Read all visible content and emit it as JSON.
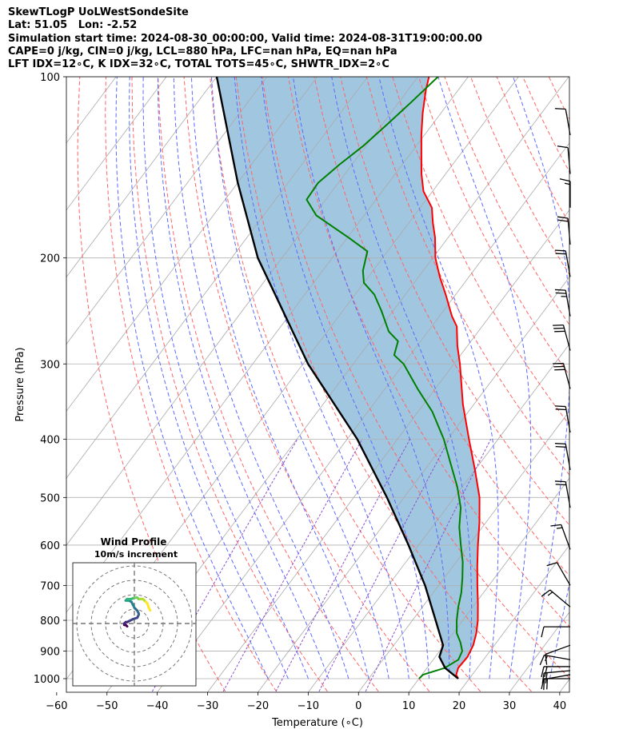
{
  "header": {
    "line1": "SkewTLogP UoLWestSondeSite",
    "line2": "Lat: 51.05   Lon: -2.52",
    "line3": "Simulation start time: 2024-08-30_00:00:00, Valid time: 2024-08-31T19:00:00.00",
    "line4": "CAPE=0 j/kg, CIN=0 j/kg, LCL=880 hPa, LFC=nan hPa, EQ=nan hPa",
    "line5": "LFT IDX=12∘C, K IDX=32∘C, TOTAL TOTS=45∘C, SHWTR_IDX=2∘C"
  },
  "chart_data": [
    {
      "type": "line",
      "subtype": "skew-t log-p",
      "xlabel": "Temperature (∘C)",
      "ylabel": "Pressure (hPa)",
      "xlim": [
        -60,
        40
      ],
      "ylim": [
        1050,
        100
      ],
      "y_scale": "log",
      "x_ticks": [
        -60,
        -50,
        -40,
        -30,
        -20,
        -10,
        0,
        10,
        20,
        30,
        40
      ],
      "x_tick_labels": [
        "−60",
        "−50",
        "−40",
        "−30",
        "−20",
        "−10",
        "0",
        "10",
        "20",
        "30",
        "40"
      ],
      "y_ticks": [
        100,
        200,
        300,
        400,
        500,
        600,
        700,
        800,
        900,
        1000
      ],
      "y_tick_labels": [
        "100",
        "200",
        "300",
        "400",
        "500",
        "600",
        "700",
        "800",
        "900",
        "1000"
      ],
      "grid": true,
      "series": [
        {
          "role": "temperature",
          "color": "#ff0000",
          "pressure": [
            1000,
            985,
            960,
            920,
            880,
            840,
            800,
            750,
            700,
            650,
            600,
            550,
            500,
            450,
            400,
            350,
            300,
            280,
            260,
            250,
            230,
            215,
            200,
            185,
            175,
            165,
            155,
            145,
            135,
            125,
            115,
            105,
            100
          ],
          "temperature": [
            17.8,
            16.8,
            16.2,
            16.4,
            15.8,
            14.6,
            13.0,
            10.5,
            7.7,
            4.8,
            1.8,
            -1.3,
            -5.0,
            -10.0,
            -15.8,
            -22.2,
            -28.8,
            -32.0,
            -35.0,
            -37.5,
            -42.0,
            -45.8,
            -49.5,
            -52.6,
            -55.2,
            -57.7,
            -61.8,
            -64.8,
            -67.6,
            -70.6,
            -73.6,
            -76.5,
            -77.8
          ]
        },
        {
          "role": "dewpoint",
          "color": "#008000",
          "pressure": [
            1000,
            985,
            960,
            930,
            900,
            870,
            840,
            800,
            760,
            720,
            680,
            640,
            600,
            560,
            520,
            480,
            440,
            400,
            360,
            330,
            300,
            290,
            275,
            265,
            245,
            230,
            220,
            210,
            195,
            185,
            170,
            160,
            150,
            140,
            130,
            120,
            110,
            100
          ],
          "temperature": [
            10.0,
            10.2,
            13.5,
            15.0,
            14.5,
            12.8,
            10.7,
            8.8,
            7.1,
            5.6,
            3.6,
            1.3,
            -1.6,
            -4.6,
            -7.2,
            -11.0,
            -15.7,
            -20.8,
            -27.2,
            -33.5,
            -40.0,
            -43.2,
            -44.5,
            -47.8,
            -52.3,
            -56.2,
            -60.0,
            -62.0,
            -64.0,
            -69.8,
            -79.5,
            -83.8,
            -84.0,
            -82.5,
            -80.5,
            -79.0,
            -77.5,
            -76.0
          ]
        },
        {
          "role": "parcel",
          "color": "#000000",
          "pressure": [
            1000,
            960,
            920,
            880,
            800,
            700,
            600,
            500,
            400,
            300,
            200,
            150,
            100
          ],
          "temperature": [
            17.8,
            13.6,
            10.8,
            9.8,
            4.6,
            -2.7,
            -12.0,
            -23.4,
            -38.0,
            -59.0,
            -84.8,
            -100.0,
            -120.0
          ]
        }
      ],
      "shading": {
        "between": [
          "temperature",
          "parcel"
        ],
        "color": "#a1c6e0"
      },
      "reference_lines": {
        "isotherm_color": "#aaaaaa",
        "dry_adiabat_color": "#ff6666",
        "moist_adiabat_color": "#5b6bff",
        "mixing_ratio_color": "#8e4fd0",
        "line_style": "dashed"
      },
      "wind_barbs": [
        {
          "pressure": 1000,
          "speed_kt": 10,
          "dir_deg": 270
        },
        {
          "pressure": 985,
          "speed_kt": 20,
          "dir_deg": 260
        },
        {
          "pressure": 970,
          "speed_kt": 20,
          "dir_deg": 265
        },
        {
          "pressure": 955,
          "speed_kt": 20,
          "dir_deg": 270
        },
        {
          "pressure": 930,
          "speed_kt": 15,
          "dir_deg": 280
        },
        {
          "pressure": 880,
          "speed_kt": 10,
          "dir_deg": 250
        },
        {
          "pressure": 820,
          "speed_kt": 10,
          "dir_deg": 270
        },
        {
          "pressure": 760,
          "speed_kt": 15,
          "dir_deg": 310
        },
        {
          "pressure": 700,
          "speed_kt": 10,
          "dir_deg": 330
        },
        {
          "pressure": 610,
          "speed_kt": 15,
          "dir_deg": 340
        },
        {
          "pressure": 520,
          "speed_kt": 20,
          "dir_deg": 350
        },
        {
          "pressure": 450,
          "speed_kt": 20,
          "dir_deg": 350
        },
        {
          "pressure": 390,
          "speed_kt": 20,
          "dir_deg": 350
        },
        {
          "pressure": 330,
          "speed_kt": 30,
          "dir_deg": 345
        },
        {
          "pressure": 285,
          "speed_kt": 30,
          "dir_deg": 345
        },
        {
          "pressure": 250,
          "speed_kt": 25,
          "dir_deg": 350
        },
        {
          "pressure": 215,
          "speed_kt": 20,
          "dir_deg": 350
        },
        {
          "pressure": 190,
          "speed_kt": 20,
          "dir_deg": 355
        },
        {
          "pressure": 165,
          "speed_kt": 15,
          "dir_deg": 0
        },
        {
          "pressure": 145,
          "speed_kt": 10,
          "dir_deg": 355
        },
        {
          "pressure": 125,
          "speed_kt": 10,
          "dir_deg": 350
        }
      ]
    },
    {
      "type": "scatter",
      "subtype": "hodograph",
      "title": "Wind Profile",
      "subtitle": "10m/s increment",
      "rings_ms": [
        10,
        20,
        30,
        40
      ],
      "colormap": "viridis",
      "u": [
        -5,
        -6,
        -7,
        -7,
        -7,
        -6,
        -5,
        -3,
        -1,
        2,
        3,
        3,
        2,
        0,
        -1,
        -2,
        -4,
        -5,
        -6,
        -5,
        -3,
        -2,
        0,
        2,
        3,
        4,
        6,
        7,
        8,
        9,
        10,
        11
      ],
      "v": [
        -2,
        -1,
        -1,
        0,
        0,
        1,
        1,
        2,
        3,
        4,
        6,
        7,
        9,
        11,
        13,
        15,
        16,
        16,
        16,
        17,
        17,
        17,
        18,
        18,
        17,
        17,
        17,
        16,
        15,
        14,
        11,
        9
      ]
    }
  ]
}
